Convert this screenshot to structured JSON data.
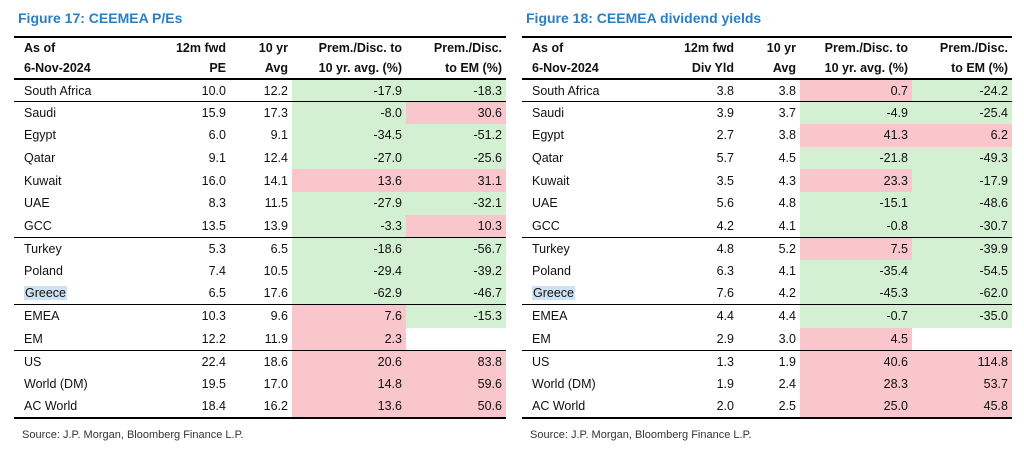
{
  "left": {
    "title": "Figure 17: CEEMEA P/Es",
    "headers": {
      "c1a": "As of",
      "c1b": "6-Nov-2024",
      "c2a": "12m fwd",
      "c2b": "PE",
      "c3a": "10 yr",
      "c3b": "Avg",
      "c4a": "Prem./Disc. to",
      "c4b": "10 yr. avg. (%)",
      "c5a": "Prem./Disc.",
      "c5b": "to EM (%)"
    },
    "rows": [
      {
        "name": "South Africa",
        "v1": "10.0",
        "v2": "12.2",
        "v3": "-17.9",
        "v4": "-18.3"
      },
      {
        "name": "Saudi",
        "v1": "15.9",
        "v2": "17.3",
        "v3": "-8.0",
        "v4": "30.6"
      },
      {
        "name": "Egypt",
        "v1": "6.0",
        "v2": "9.1",
        "v3": "-34.5",
        "v4": "-51.2"
      },
      {
        "name": "Qatar",
        "v1": "9.1",
        "v2": "12.4",
        "v3": "-27.0",
        "v4": "-25.6"
      },
      {
        "name": "Kuwait",
        "v1": "16.0",
        "v2": "14.1",
        "v3": "13.6",
        "v4": "31.1"
      },
      {
        "name": "UAE",
        "v1": "8.3",
        "v2": "11.5",
        "v3": "-27.9",
        "v4": "-32.1"
      },
      {
        "name": "GCC",
        "v1": "13.5",
        "v2": "13.9",
        "v3": "-3.3",
        "v4": "10.3"
      },
      {
        "name": "Turkey",
        "v1": "5.3",
        "v2": "6.5",
        "v3": "-18.6",
        "v4": "-56.7"
      },
      {
        "name": "Poland",
        "v1": "7.4",
        "v2": "10.5",
        "v3": "-29.4",
        "v4": "-39.2"
      },
      {
        "name": "Greece",
        "v1": "6.5",
        "v2": "17.6",
        "v3": "-62.9",
        "v4": "-46.7"
      },
      {
        "name": "EMEA",
        "v1": "10.3",
        "v2": "9.6",
        "v3": "7.6",
        "v4": "-15.3"
      },
      {
        "name": "EM",
        "v1": "12.2",
        "v2": "11.9",
        "v3": "2.3",
        "v4": ""
      },
      {
        "name": "US",
        "v1": "22.4",
        "v2": "18.6",
        "v3": "20.6",
        "v4": "83.8"
      },
      {
        "name": "World (DM)",
        "v1": "19.5",
        "v2": "17.0",
        "v3": "14.8",
        "v4": "59.6"
      },
      {
        "name": "AC World",
        "v1": "18.4",
        "v2": "16.2",
        "v3": "13.6",
        "v4": "50.6"
      }
    ],
    "source": "Source: J.P. Morgan, Bloomberg Finance L.P."
  },
  "right": {
    "title": "Figure 18: CEEMEA dividend yields",
    "headers": {
      "c1a": "As of",
      "c1b": "6-Nov-2024",
      "c2a": "12m fwd",
      "c2b": "Div Yld",
      "c3a": "10 yr",
      "c3b": "Avg",
      "c4a": "Prem./Disc. to",
      "c4b": "10 yr. avg. (%)",
      "c5a": "Prem./Disc.",
      "c5b": "to EM (%)"
    },
    "rows": [
      {
        "name": "South Africa",
        "v1": "3.8",
        "v2": "3.8",
        "v3": "0.7",
        "v4": "-24.2"
      },
      {
        "name": "Saudi",
        "v1": "3.9",
        "v2": "3.7",
        "v3": "-4.9",
        "v4": "-25.4"
      },
      {
        "name": "Egypt",
        "v1": "2.7",
        "v2": "3.8",
        "v3": "41.3",
        "v4": "6.2"
      },
      {
        "name": "Qatar",
        "v1": "5.7",
        "v2": "4.5",
        "v3": "-21.8",
        "v4": "-49.3"
      },
      {
        "name": "Kuwait",
        "v1": "3.5",
        "v2": "4.3",
        "v3": "23.3",
        "v4": "-17.9"
      },
      {
        "name": "UAE",
        "v1": "5.6",
        "v2": "4.8",
        "v3": "-15.1",
        "v4": "-48.6"
      },
      {
        "name": "GCC",
        "v1": "4.2",
        "v2": "4.1",
        "v3": "-0.8",
        "v4": "-30.7"
      },
      {
        "name": "Turkey",
        "v1": "4.8",
        "v2": "5.2",
        "v3": "7.5",
        "v4": "-39.9"
      },
      {
        "name": "Poland",
        "v1": "6.3",
        "v2": "4.1",
        "v3": "-35.4",
        "v4": "-54.5"
      },
      {
        "name": "Greece",
        "v1": "7.6",
        "v2": "4.2",
        "v3": "-45.3",
        "v4": "-62.0"
      },
      {
        "name": "EMEA",
        "v1": "4.4",
        "v2": "4.4",
        "v3": "-0.7",
        "v4": "-35.0"
      },
      {
        "name": "EM",
        "v1": "2.9",
        "v2": "3.0",
        "v3": "4.5",
        "v4": ""
      },
      {
        "name": "US",
        "v1": "1.3",
        "v2": "1.9",
        "v3": "40.6",
        "v4": "114.8"
      },
      {
        "name": "World (DM)",
        "v1": "1.9",
        "v2": "2.4",
        "v3": "28.3",
        "v4": "53.7"
      },
      {
        "name": "AC World",
        "v1": "2.0",
        "v2": "2.5",
        "v3": "25.0",
        "v4": "45.8"
      }
    ],
    "source": "Source: J.P. Morgan, Bloomberg Finance L.P."
  },
  "colors": {
    "title": "#2a7fc1",
    "premium_fill": "#f8c6cb",
    "discount_fill": "#d3f0d3",
    "highlight_fill": "#cfe2f3"
  }
}
